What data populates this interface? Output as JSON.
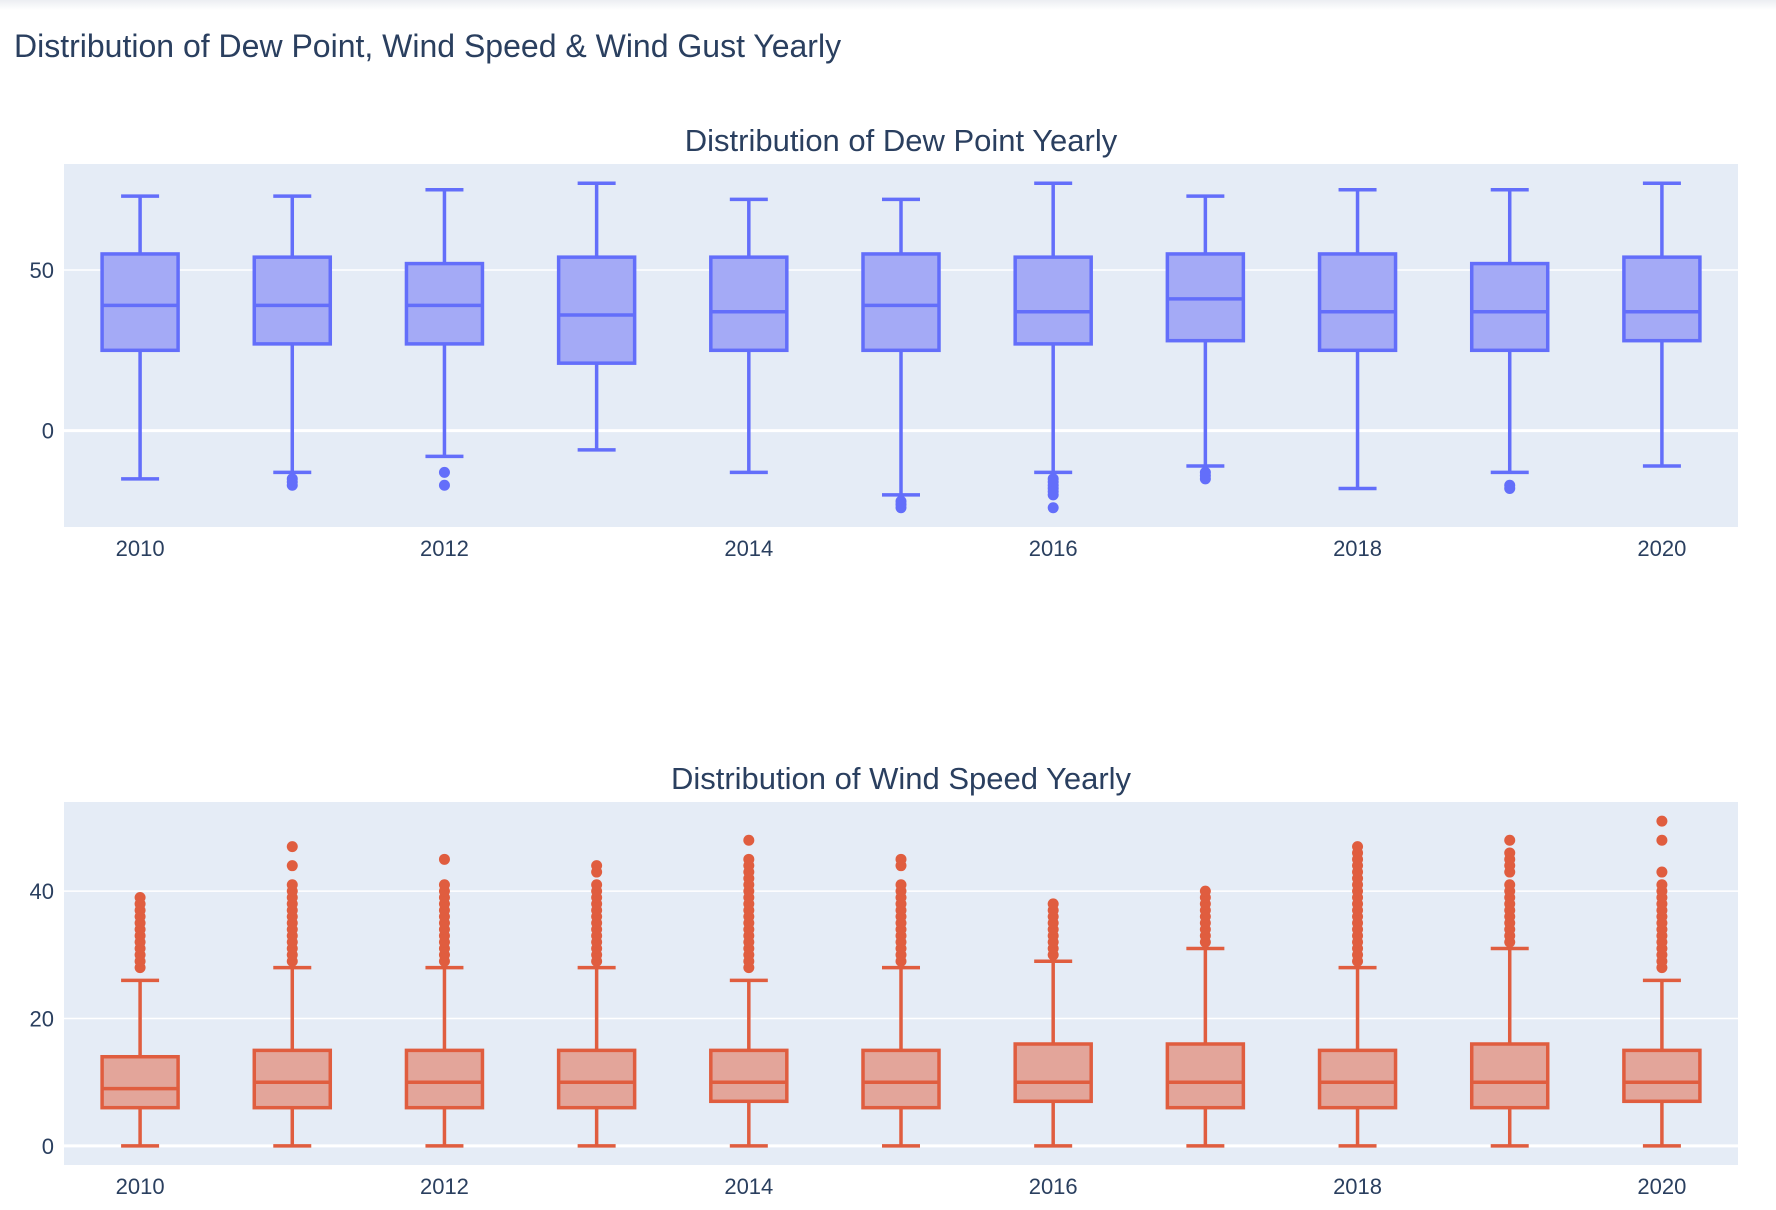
{
  "title": "Distribution of Dew Point, Wind Speed & Wind Gust Yearly",
  "chart_data": [
    {
      "type": "box",
      "title": "Distribution of Dew Point Yearly",
      "color": "#636efa",
      "fill": "#a4aaf6",
      "ylim": [
        -30,
        83
      ],
      "yticks": [
        0,
        50
      ],
      "xticks": [
        2010,
        2012,
        2014,
        2016,
        2018,
        2020
      ],
      "xlim": [
        2009.5,
        2020.5
      ],
      "grid": true,
      "boxes": [
        {
          "year": 2010,
          "min": -15,
          "q1": 25,
          "median": 39,
          "q3": 55,
          "max": 73,
          "outliers": []
        },
        {
          "year": 2011,
          "min": -13,
          "q1": 27,
          "median": 39,
          "q3": 54,
          "max": 73,
          "outliers": [
            -15,
            -16,
            -17
          ]
        },
        {
          "year": 2012,
          "min": -8,
          "q1": 27,
          "median": 39,
          "q3": 52,
          "max": 75,
          "outliers": [
            -13,
            -17
          ]
        },
        {
          "year": 2013,
          "min": -6,
          "q1": 21,
          "median": 36,
          "q3": 54,
          "max": 77,
          "outliers": []
        },
        {
          "year": 2014,
          "min": -13,
          "q1": 25,
          "median": 37,
          "q3": 54,
          "max": 72,
          "outliers": []
        },
        {
          "year": 2015,
          "min": -20,
          "q1": 25,
          "median": 39,
          "q3": 55,
          "max": 72,
          "outliers": [
            -22,
            -23,
            -24
          ]
        },
        {
          "year": 2016,
          "min": -13,
          "q1": 27,
          "median": 37,
          "q3": 54,
          "max": 77,
          "outliers": [
            -15,
            -16,
            -17,
            -18,
            -19,
            -20,
            -24
          ]
        },
        {
          "year": 2017,
          "min": -11,
          "q1": 28,
          "median": 41,
          "q3": 55,
          "max": 73,
          "outliers": [
            -13,
            -14,
            -15
          ]
        },
        {
          "year": 2018,
          "min": -18,
          "q1": 25,
          "median": 37,
          "q3": 55,
          "max": 75,
          "outliers": []
        },
        {
          "year": 2019,
          "min": -13,
          "q1": 25,
          "median": 37,
          "q3": 52,
          "max": 75,
          "outliers": [
            -17,
            -18
          ]
        },
        {
          "year": 2020,
          "min": -11,
          "q1": 28,
          "median": 37,
          "q3": 54,
          "max": 77,
          "outliers": []
        }
      ]
    },
    {
      "type": "box",
      "title": "Distribution of Wind Speed Yearly",
      "color": "#e05d3f",
      "fill": "#e3a59a",
      "ylim": [
        -3,
        54
      ],
      "yticks": [
        0,
        20,
        40
      ],
      "xticks": [
        2010,
        2012,
        2014,
        2016,
        2018,
        2020
      ],
      "xlim": [
        2009.5,
        2020.5
      ],
      "grid": true,
      "boxes": [
        {
          "year": 2010,
          "min": 0,
          "q1": 6,
          "median": 9,
          "q3": 14,
          "max": 26,
          "outliers": [
            28,
            29,
            30,
            31,
            32,
            33,
            34,
            35,
            36,
            37,
            38,
            39
          ]
        },
        {
          "year": 2011,
          "min": 0,
          "q1": 6,
          "median": 10,
          "q3": 15,
          "max": 28,
          "outliers": [
            29,
            30,
            31,
            32,
            33,
            34,
            35,
            36,
            37,
            38,
            39,
            40,
            41,
            44,
            47
          ]
        },
        {
          "year": 2012,
          "min": 0,
          "q1": 6,
          "median": 10,
          "q3": 15,
          "max": 28,
          "outliers": [
            29,
            30,
            31,
            32,
            33,
            34,
            35,
            36,
            37,
            38,
            39,
            40,
            41,
            45
          ]
        },
        {
          "year": 2013,
          "min": 0,
          "q1": 6,
          "median": 10,
          "q3": 15,
          "max": 28,
          "outliers": [
            29,
            30,
            31,
            32,
            33,
            34,
            35,
            36,
            37,
            38,
            39,
            40,
            41,
            43,
            44
          ]
        },
        {
          "year": 2014,
          "min": 0,
          "q1": 7,
          "median": 10,
          "q3": 15,
          "max": 26,
          "outliers": [
            28,
            29,
            30,
            31,
            32,
            33,
            34,
            35,
            36,
            37,
            38,
            39,
            40,
            41,
            42,
            43,
            44,
            45,
            48
          ]
        },
        {
          "year": 2015,
          "min": 0,
          "q1": 6,
          "median": 10,
          "q3": 15,
          "max": 28,
          "outliers": [
            29,
            30,
            31,
            32,
            33,
            34,
            35,
            36,
            37,
            38,
            39,
            40,
            41,
            44,
            45
          ]
        },
        {
          "year": 2016,
          "min": 0,
          "q1": 7,
          "median": 10,
          "q3": 16,
          "max": 29,
          "outliers": [
            30,
            31,
            32,
            33,
            34,
            35,
            36,
            37,
            38
          ]
        },
        {
          "year": 2017,
          "min": 0,
          "q1": 6,
          "median": 10,
          "q3": 16,
          "max": 31,
          "outliers": [
            32,
            33,
            34,
            35,
            36,
            37,
            38,
            39,
            40
          ]
        },
        {
          "year": 2018,
          "min": 0,
          "q1": 6,
          "median": 10,
          "q3": 15,
          "max": 28,
          "outliers": [
            29,
            30,
            31,
            32,
            33,
            34,
            35,
            36,
            37,
            38,
            39,
            40,
            41,
            42,
            43,
            44,
            45,
            46,
            47
          ]
        },
        {
          "year": 2019,
          "min": 0,
          "q1": 6,
          "median": 10,
          "q3": 16,
          "max": 31,
          "outliers": [
            32,
            33,
            34,
            35,
            36,
            37,
            38,
            39,
            40,
            41,
            43,
            44,
            45,
            46,
            48
          ]
        },
        {
          "year": 2020,
          "min": 0,
          "q1": 7,
          "median": 10,
          "q3": 15,
          "max": 26,
          "outliers": [
            28,
            29,
            30,
            31,
            32,
            33,
            34,
            35,
            36,
            37,
            38,
            39,
            40,
            41,
            43,
            48,
            51
          ]
        }
      ]
    }
  ]
}
